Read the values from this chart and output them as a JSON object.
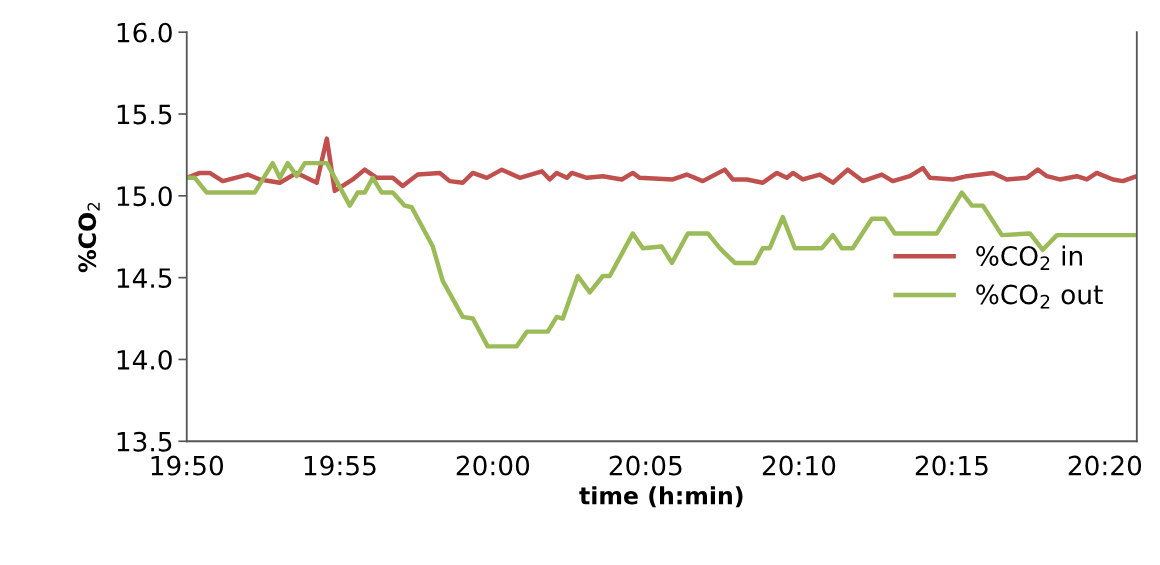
{
  "chart_data": {
    "type": "line",
    "xlabel": "time (h:min)",
    "ylabel": "%CO$_{2}$",
    "xlim": [
      19.8333,
      20.3507
    ],
    "xticks": [
      {
        "value": 19.8333,
        "label": "19:50"
      },
      {
        "value": 19.9167,
        "label": "19:55"
      },
      {
        "value": 20.0,
        "label": "20:00"
      },
      {
        "value": 20.0833,
        "label": "20:05"
      },
      {
        "value": 20.1667,
        "label": "20:10"
      },
      {
        "value": 20.25,
        "label": "20:15"
      },
      {
        "value": 20.3333,
        "label": "20:20"
      }
    ],
    "ylim": [
      13.5,
      16.0
    ],
    "yticks": [
      {
        "value": 13.5,
        "label": "13.5"
      },
      {
        "value": 14.0,
        "label": "14.0"
      },
      {
        "value": 14.5,
        "label": "14.5"
      },
      {
        "value": 15.0,
        "label": "15.0"
      },
      {
        "value": 15.5,
        "label": "15.5"
      },
      {
        "value": 16.0,
        "label": "16.0"
      }
    ],
    "grid": false,
    "legend": "center right",
    "marker": "none",
    "line_style": "solid",
    "series": [
      {
        "name": "%CO$_{2}$ in",
        "color": "#c0504d",
        "x": [
          19.8333,
          19.8404,
          19.8458,
          19.8529,
          19.8665,
          19.8731,
          19.884,
          19.8932,
          19.9041,
          19.9096,
          19.9139,
          19.9237,
          19.9302,
          19.9368,
          19.9455,
          19.9509,
          19.9591,
          19.9711,
          19.9765,
          19.9836,
          19.9891,
          19.9967,
          20.0049,
          20.0147,
          20.0267,
          20.031,
          20.0348,
          20.0403,
          20.043,
          20.0512,
          20.0599,
          20.0702,
          20.0762,
          20.08,
          20.098,
          20.1056,
          20.1143,
          20.1263,
          20.1307,
          20.1383,
          20.147,
          20.1547,
          20.1601,
          20.1634,
          20.1688,
          20.1781,
          20.1852,
          20.1933,
          20.2015,
          20.2118,
          20.2178,
          20.2271,
          20.2342,
          20.238,
          20.2505,
          20.2581,
          20.2723,
          20.2799,
          20.2908,
          20.2968,
          20.3017,
          20.3088,
          20.318,
          20.3235,
          20.3289,
          20.3377,
          20.3431,
          20.3507
        ],
        "values": [
          15.11,
          15.14,
          15.14,
          15.09,
          15.13,
          15.1,
          15.08,
          15.14,
          15.08,
          15.35,
          15.03,
          15.1,
          15.16,
          15.11,
          15.11,
          15.06,
          15.13,
          15.14,
          15.09,
          15.08,
          15.14,
          15.11,
          15.16,
          15.11,
          15.15,
          15.1,
          15.14,
          15.11,
          15.14,
          15.11,
          15.12,
          15.1,
          15.14,
          15.11,
          15.1,
          15.13,
          15.09,
          15.16,
          15.1,
          15.1,
          15.08,
          15.14,
          15.11,
          15.14,
          15.1,
          15.13,
          15.08,
          15.16,
          15.09,
          15.13,
          15.09,
          15.12,
          15.17,
          15.11,
          15.1,
          15.12,
          15.14,
          15.1,
          15.11,
          15.16,
          15.12,
          15.1,
          15.12,
          15.1,
          15.14,
          15.1,
          15.09,
          15.12
        ]
      },
      {
        "name": "%CO$_{2}$ out",
        "color": "#9bbb59",
        "x": [
          19.8333,
          19.8377,
          19.8442,
          19.8703,
          19.8801,
          19.884,
          19.8883,
          19.8932,
          19.8976,
          19.9096,
          19.9221,
          19.9264,
          19.9302,
          19.9346,
          19.9395,
          19.9455,
          19.952,
          19.9558,
          19.9673,
          19.9727,
          19.9836,
          19.9891,
          19.9972,
          20.0092,
          20.013,
          20.0185,
          20.0299,
          20.0348,
          20.0381,
          20.0463,
          20.0528,
          20.0599,
          20.0637,
          20.0762,
          20.0817,
          20.092,
          20.0975,
          20.1062,
          20.1171,
          20.1236,
          20.1318,
          20.1427,
          20.147,
          20.1508,
          20.1579,
          20.1645,
          20.1792,
          20.1852,
          20.1901,
          20.196,
          20.2064,
          20.2135,
          20.2189,
          20.2418,
          20.2554,
          20.2609,
          20.2669,
          20.2772,
          20.2925,
          20.2995,
          20.3072,
          20.3507
        ],
        "values": [
          15.11,
          15.11,
          15.02,
          15.02,
          15.2,
          15.11,
          15.2,
          15.12,
          15.2,
          15.2,
          14.94,
          15.02,
          15.02,
          15.11,
          15.02,
          15.02,
          14.94,
          14.93,
          14.69,
          14.48,
          14.26,
          14.25,
          14.08,
          14.08,
          14.08,
          14.17,
          14.17,
          14.26,
          14.25,
          14.51,
          14.41,
          14.51,
          14.51,
          14.77,
          14.68,
          14.69,
          14.59,
          14.77,
          14.77,
          14.68,
          14.59,
          14.59,
          14.68,
          14.68,
          14.87,
          14.68,
          14.68,
          14.76,
          14.68,
          14.68,
          14.86,
          14.86,
          14.77,
          14.77,
          15.02,
          14.94,
          14.94,
          14.76,
          14.77,
          14.67,
          14.76,
          14.76
        ]
      }
    ]
  }
}
